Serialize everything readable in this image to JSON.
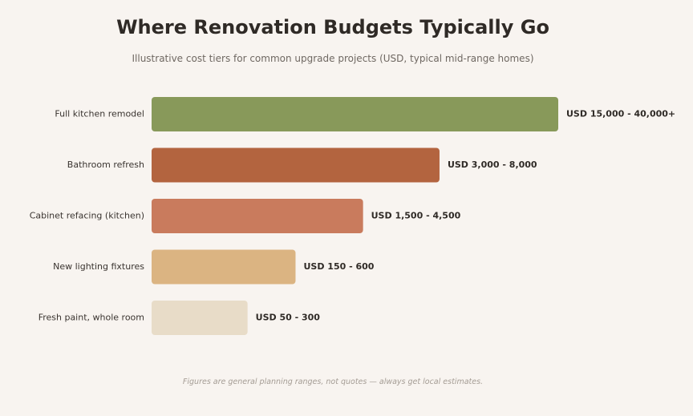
{
  "chart_data": {
    "type": "bar",
    "orientation": "horizontal",
    "title": "Where Renovation Budgets Typically Go",
    "subtitle": "Illustrative cost tiers for common upgrade projects (USD, typical mid-range homes)",
    "footnote": "Figures are general planning ranges, not quotes — always get local estimates.",
    "categories": [
      "Full kitchen remodel",
      "Bathroom refresh",
      "Cabinet refacing (kitchen)",
      "New lighting fixtures",
      "Fresh paint, whole room"
    ],
    "value_labels": [
      "USD 15,000 - 40,000+",
      "USD 3,000 - 8,000",
      "USD 1,500 - 4,500",
      "USD 150 - 600",
      "USD 50 - 300"
    ],
    "values": [
      100,
      70.8,
      52,
      35.4,
      23.6
    ],
    "colors": [
      "#88995a",
      "#b3643f",
      "#c97b5d",
      "#dbb482",
      "#e8dcc8"
    ],
    "xlim": [
      0,
      100
    ],
    "grid": false,
    "legend": "none"
  }
}
